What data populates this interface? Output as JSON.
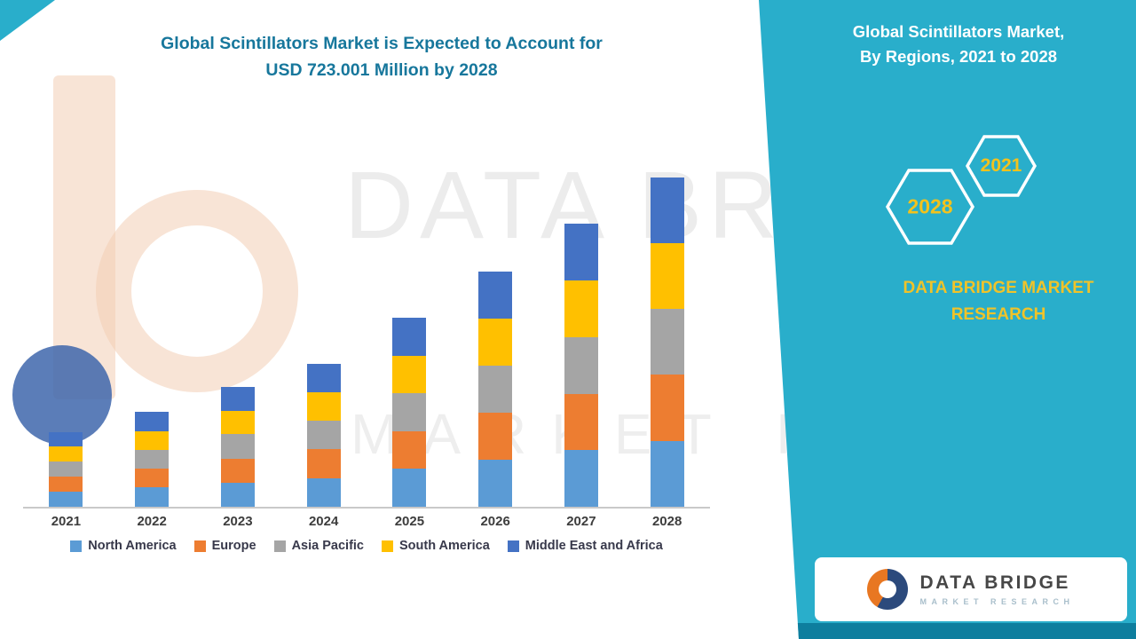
{
  "title": {
    "line1": "Global Scintillators Market is Expected to Account for",
    "line2": "USD 723.001 Million by 2028"
  },
  "side_panel": {
    "heading_line1": "Global Scintillators Market,",
    "heading_line2": "By Regions, 2021 to 2028",
    "hex_years": [
      {
        "label": "2028"
      },
      {
        "label": "2021"
      }
    ],
    "brand_line1": "DATA BRIDGE MARKET",
    "brand_line2": "RESEARCH"
  },
  "logo": {
    "name": "DATA BRIDGE",
    "tagline": "MARKET RESEARCH"
  },
  "watermark": {
    "line1": "DATA BRIDGE",
    "line2": "MARKET RESEARCH"
  },
  "colors": {
    "accent_teal": "#29AECB",
    "title_teal": "#17779C",
    "highlight_yellow": "#F2C21D"
  },
  "chart_data": {
    "type": "bar",
    "stacked": true,
    "units": "USD Million",
    "categories": [
      "2021",
      "2022",
      "2023",
      "2024",
      "2025",
      "2026",
      "2027",
      "2028"
    ],
    "series": [
      {
        "name": "North America",
        "color": "#5B9BD5",
        "values": [
          33,
          42,
          53,
          63,
          83,
          103,
          124,
          145
        ]
      },
      {
        "name": "Europe",
        "color": "#ED7D31",
        "values": [
          33,
          42,
          53,
          63,
          83,
          103,
          124,
          145
        ]
      },
      {
        "name": "Asia Pacific",
        "color": "#A5A5A5",
        "values": [
          33,
          41,
          53,
          63,
          83,
          104,
          124,
          145
        ]
      },
      {
        "name": "South America",
        "color": "#FFC000",
        "values": [
          33,
          41,
          52,
          62,
          83,
          103,
          124,
          144
        ]
      },
      {
        "name": "Middle East and Africa",
        "color": "#4472C4",
        "values": [
          32,
          42,
          53,
          63,
          83,
          104,
          125,
          144
        ]
      }
    ],
    "totals": [
      164,
      208,
      264,
      314,
      415,
      517,
      621,
      723
    ],
    "ylim": [
      0,
      740
    ],
    "grid": false,
    "legend_position": "bottom"
  }
}
